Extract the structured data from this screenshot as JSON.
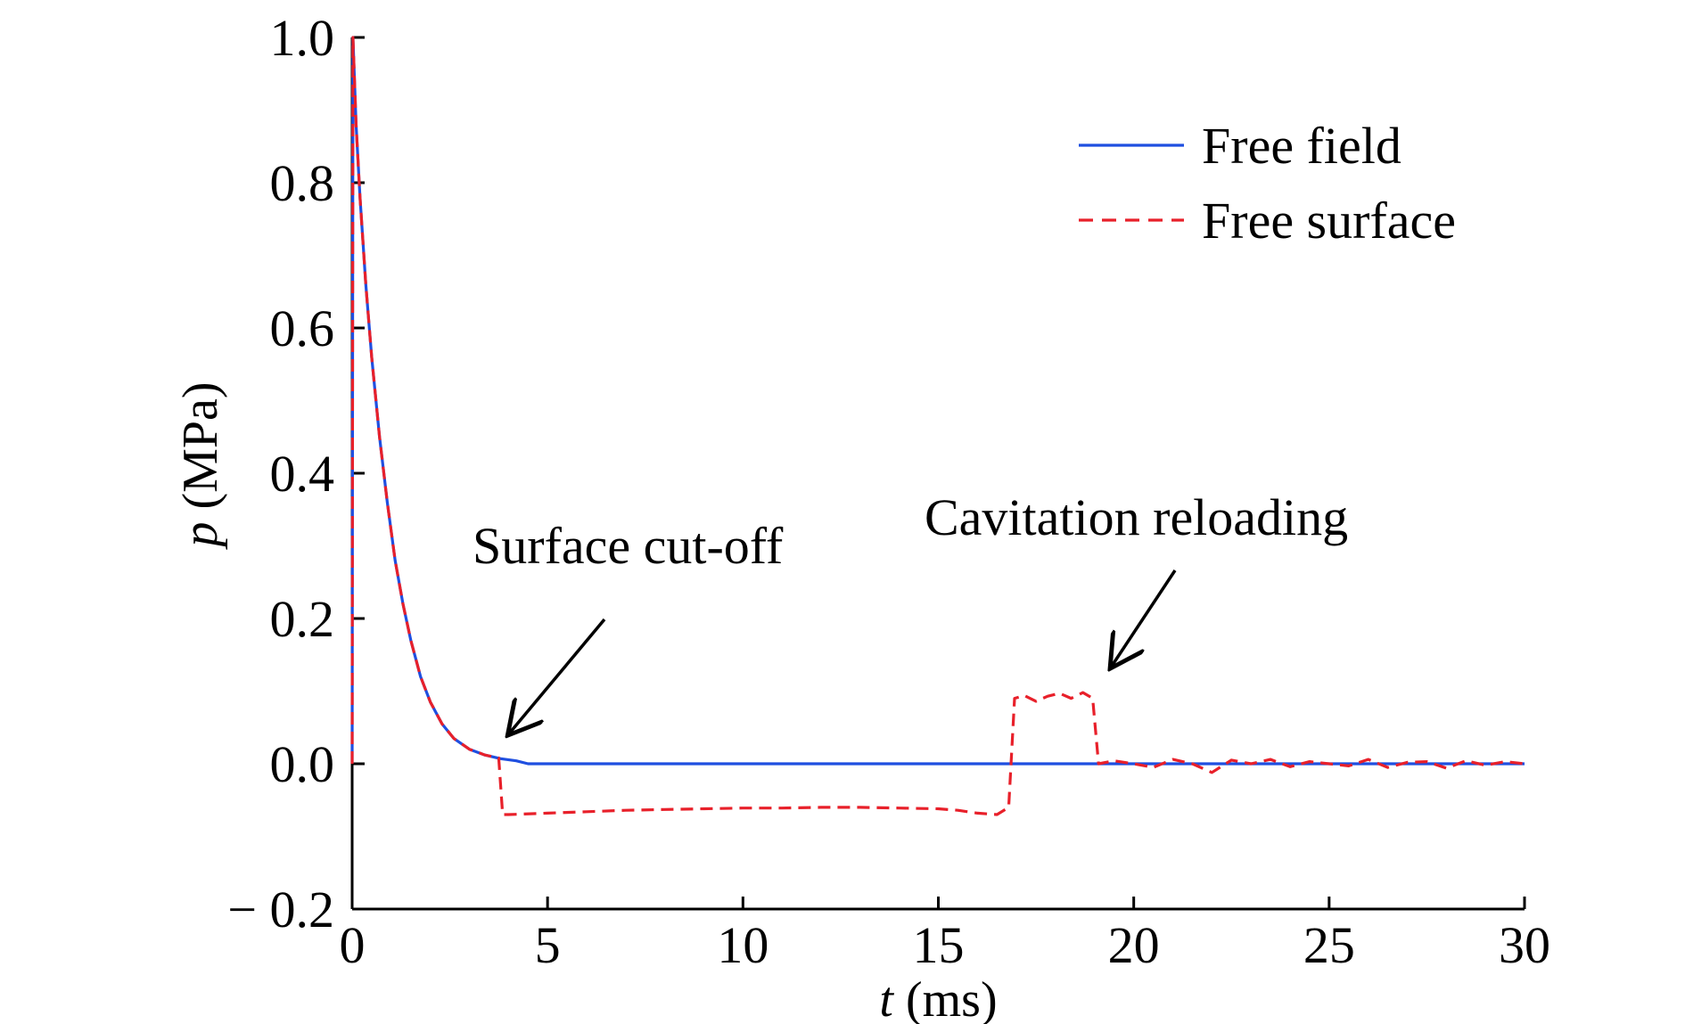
{
  "chart_data": {
    "type": "line",
    "xlabel": {
      "var": "t",
      "unit": "(ms)"
    },
    "ylabel": {
      "var": "p",
      "unit": "(MPa)"
    },
    "xlim": [
      0,
      30
    ],
    "ylim": [
      -0.2,
      1.0
    ],
    "x_ticks": [
      0,
      5,
      10,
      15,
      20,
      25,
      30
    ],
    "x_tick_labels": [
      "0",
      "5",
      "10",
      "15",
      "20",
      "25",
      "30"
    ],
    "y_ticks": [
      1.0,
      0.8,
      0.6,
      0.4,
      0.2,
      0.0,
      -0.2
    ],
    "y_tick_labels": [
      "1.0",
      "0.8",
      "0.6",
      "0.4",
      "0.2",
      "0.0",
      "− 0.2"
    ],
    "grid": false,
    "legend_position": "top-right",
    "series": [
      {
        "name": "Free field",
        "color": "#1f4fe0",
        "style": "solid",
        "x": [
          0,
          0.02,
          0.1,
          0.2,
          0.35,
          0.5,
          0.7,
          0.9,
          1.1,
          1.3,
          1.5,
          1.75,
          2.0,
          2.3,
          2.6,
          3.0,
          3.4,
          3.8,
          4.2,
          4.5,
          30
        ],
        "y": [
          0,
          1.0,
          0.88,
          0.78,
          0.66,
          0.56,
          0.45,
          0.36,
          0.28,
          0.22,
          0.17,
          0.12,
          0.085,
          0.055,
          0.035,
          0.02,
          0.012,
          0.007,
          0.004,
          0.0,
          0.0
        ]
      },
      {
        "name": "Free surface",
        "color": "#e8202a",
        "style": "dashed",
        "x": [
          0,
          0.02,
          0.1,
          0.2,
          0.35,
          0.5,
          0.7,
          0.9,
          1.1,
          1.3,
          1.5,
          1.75,
          2.0,
          2.3,
          2.6,
          3.0,
          3.4,
          3.75,
          3.85,
          4.0,
          5,
          6,
          7,
          8,
          9,
          10,
          11,
          12,
          13,
          14,
          15,
          15.5,
          16,
          16.5,
          16.8,
          16.95,
          17.2,
          17.5,
          17.8,
          18.1,
          18.4,
          18.7,
          18.95,
          19.1,
          19.5,
          20,
          20.5,
          21,
          21.5,
          22,
          22.5,
          23,
          23.5,
          24,
          24.5,
          25,
          25.5,
          26,
          26.5,
          27,
          27.5,
          28,
          28.5,
          29,
          29.5,
          30
        ],
        "y": [
          0,
          1.0,
          0.88,
          0.78,
          0.66,
          0.56,
          0.45,
          0.36,
          0.28,
          0.22,
          0.17,
          0.12,
          0.085,
          0.055,
          0.035,
          0.02,
          0.012,
          0.008,
          -0.07,
          -0.07,
          -0.068,
          -0.066,
          -0.064,
          -0.063,
          -0.062,
          -0.061,
          -0.061,
          -0.06,
          -0.06,
          -0.061,
          -0.062,
          -0.064,
          -0.068,
          -0.07,
          -0.06,
          0.09,
          0.094,
          0.086,
          0.093,
          0.097,
          0.09,
          0.098,
          0.09,
          0.0,
          0.004,
          0.0,
          -0.005,
          0.006,
          0.0,
          -0.012,
          0.005,
          0.0,
          0.006,
          -0.004,
          0.003,
          0.0,
          -0.003,
          0.006,
          -0.005,
          0.002,
          0.003,
          -0.006,
          0.004,
          -0.002,
          0.003,
          0.0
        ]
      }
    ],
    "annotations": [
      {
        "text": "Surface cut-off",
        "arrow_to": [
          3.8,
          0.03
        ]
      },
      {
        "text": "Cavitation reloading",
        "arrow_to": [
          19.3,
          0.11
        ]
      }
    ]
  }
}
